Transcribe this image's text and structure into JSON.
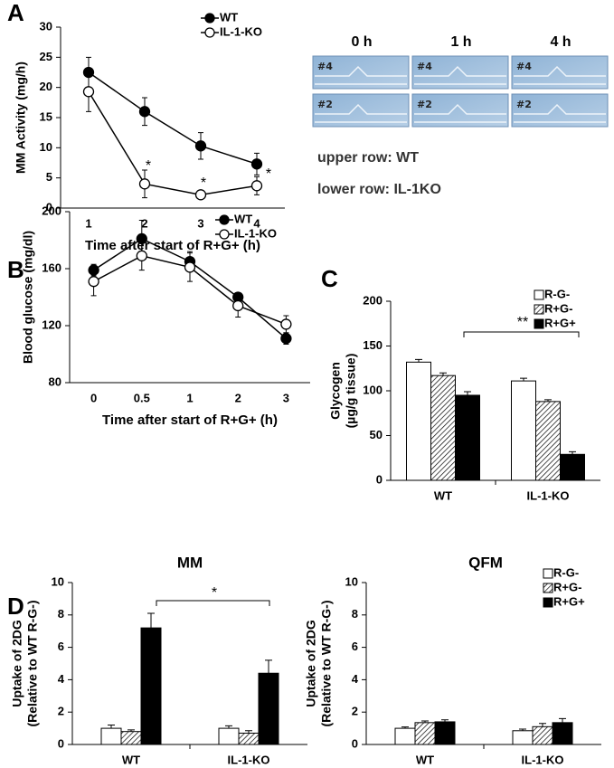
{
  "panel_labels": [
    "A",
    "B",
    "C",
    "D"
  ],
  "photo": {
    "column_labels": [
      "0 h",
      "1 h",
      "4 h"
    ],
    "sample_labels": [
      "#4",
      "#2"
    ],
    "notes": [
      "upper row: WT",
      "lower row: IL-1KO"
    ]
  },
  "chart_data": [
    {
      "type": "line",
      "x_label": "Time after start of R+G+ (h)",
      "y_label": [
        "MM Activity (mg/h)"
      ],
      "categories": [
        "1",
        "2",
        "3",
        "4"
      ],
      "series": [
        {
          "name": "WT",
          "color": "#000000",
          "marker": "filled",
          "values": [
            22.5,
            16,
            10.3,
            7.3
          ],
          "errors": [
            2.5,
            2.3,
            2.2,
            1.8
          ]
        },
        {
          "name": "IL-1-KO",
          "color": "#000000",
          "marker": "open",
          "values": [
            19.3,
            4,
            2.2,
            3.7
          ],
          "errors": [
            3.3,
            2.3,
            0.5,
            1.5
          ]
        }
      ],
      "ylim": [
        0,
        30
      ],
      "yticks": [
        0,
        5,
        10,
        15,
        20,
        25,
        30
      ],
      "legend": "upper right",
      "annotations": [
        "*",
        "*",
        "*"
      ]
    },
    {
      "type": "line",
      "x_label": "Time after start of R+G+ (h)",
      "y_label": [
        "Blood glucose (mg/dl)"
      ],
      "categories": [
        "0",
        "0.5",
        "1",
        "2",
        "3"
      ],
      "series": [
        {
          "name": "WT",
          "color": "#000000",
          "marker": "filled",
          "values": [
            159,
            181,
            165,
            140,
            111
          ],
          "errors": [
            4,
            13,
            7,
            3,
            4
          ]
        },
        {
          "name": "IL-1-KO",
          "color": "#000000",
          "marker": "open",
          "values": [
            151,
            169,
            161,
            134,
            121
          ],
          "errors": [
            10,
            10,
            10,
            8,
            6
          ]
        }
      ],
      "ylim": [
        80,
        200
      ],
      "yticks": [
        80,
        120,
        160,
        200
      ],
      "legend": "upper right",
      "annotations": []
    },
    {
      "type": "bar",
      "y_label": [
        "Glycogen",
        "(µg/g tissue)"
      ],
      "categories": [
        "WT",
        "IL-1-KO"
      ],
      "series": [
        {
          "name": "R-G-",
          "color": "#ffffff",
          "hatch": false,
          "values": [
            132,
            111
          ],
          "errors": [
            3,
            3
          ]
        },
        {
          "name": "R+G-",
          "color": "#ffffff",
          "hatch": true,
          "values": [
            117,
            88
          ],
          "errors": [
            3,
            2
          ]
        },
        {
          "name": "R+G+",
          "color": "#000000",
          "hatch": false,
          "values": [
            95,
            29
          ],
          "errors": [
            4,
            3
          ]
        }
      ],
      "ylim": [
        0,
        200
      ],
      "yticks": [
        0,
        50,
        100,
        150,
        200
      ],
      "legend": "upper right",
      "annotations": [
        "**"
      ]
    },
    {
      "type": "bar",
      "title": "MM",
      "y_label": [
        "Uptake of 2DG",
        "(Relative to WT R-G-)"
      ],
      "categories": [
        "WT",
        "IL-1-KO"
      ],
      "series": [
        {
          "name": "R-G-",
          "color": "#ffffff",
          "hatch": false,
          "values": [
            1.0,
            1.0
          ],
          "errors": [
            0.2,
            0.15
          ]
        },
        {
          "name": "R+G-",
          "color": "#ffffff",
          "hatch": true,
          "values": [
            0.8,
            0.7
          ],
          "errors": [
            0.1,
            0.15
          ]
        },
        {
          "name": "R+G+",
          "color": "#000000",
          "hatch": false,
          "values": [
            7.2,
            4.4
          ],
          "errors": [
            0.9,
            0.8
          ]
        }
      ],
      "ylim": [
        0,
        10
      ],
      "yticks": [
        0,
        2,
        4,
        6,
        8,
        10
      ],
      "annotations": [
        "*"
      ]
    },
    {
      "type": "bar",
      "title": "QFM",
      "y_label": [
        "Uptake of 2DG",
        "(Relative to WT R-G-)"
      ],
      "categories": [
        "WT",
        "IL-1-KO"
      ],
      "series": [
        {
          "name": "R-G-",
          "color": "#ffffff",
          "hatch": false,
          "values": [
            1.0,
            0.85
          ],
          "errors": [
            0.08,
            0.1
          ]
        },
        {
          "name": "R+G-",
          "color": "#ffffff",
          "hatch": true,
          "values": [
            1.35,
            1.1
          ],
          "errors": [
            0.1,
            0.2
          ]
        },
        {
          "name": "R+G+",
          "color": "#000000",
          "hatch": false,
          "values": [
            1.4,
            1.35
          ],
          "errors": [
            0.12,
            0.25
          ]
        }
      ],
      "ylim": [
        0,
        10
      ],
      "yticks": [
        0,
        2,
        4,
        6,
        8,
        10
      ],
      "legend": "upper right",
      "annotations": []
    }
  ]
}
